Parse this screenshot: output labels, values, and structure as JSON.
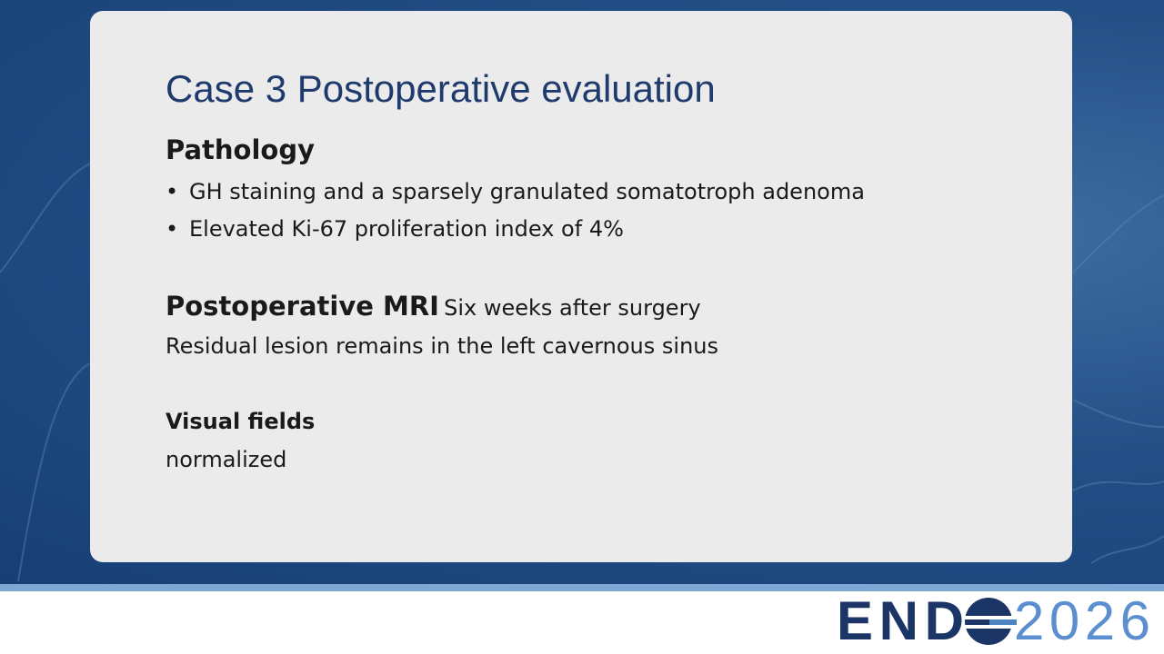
{
  "title": "Case 3 Postoperative evaluation",
  "pathology": {
    "heading": "Pathology",
    "bullets": [
      "GH staining and a sparsely granulated somatotroph adenoma",
      "Elevated Ki-67 proliferation index of 4%"
    ]
  },
  "mri": {
    "heading": "Postoperative MRI",
    "note": "Six weeks after surgery",
    "text": "Residual lesion remains in the left cavernous sinus"
  },
  "visual_fields": {
    "heading": "Visual fields",
    "text": "normalized"
  },
  "logo": {
    "brand": "END",
    "year": "2026"
  }
}
